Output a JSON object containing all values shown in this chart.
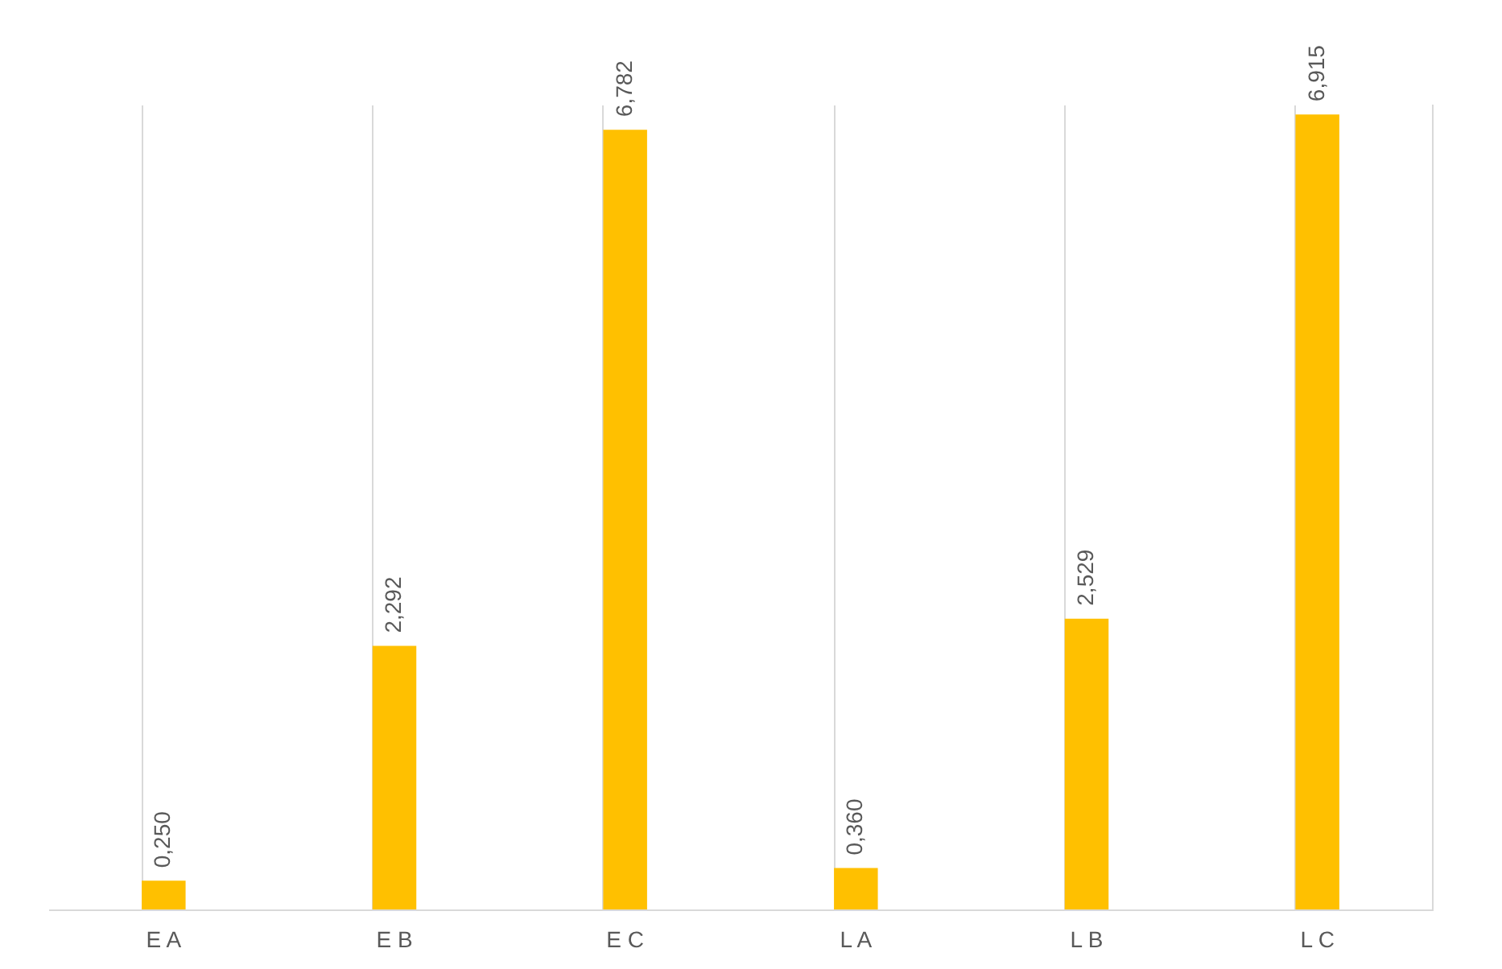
{
  "chart_data": {
    "type": "bar",
    "categories": [
      "E A",
      "E B",
      "E C",
      "L A",
      "L B",
      "L C"
    ],
    "values": [
      0.25,
      2.292,
      6.782,
      0.36,
      2.529,
      6.915
    ],
    "value_labels": [
      "0,250",
      "2,292",
      "6,782",
      "0,360",
      "2,529",
      "6,915"
    ],
    "color": "#ffc000",
    "grid": "x",
    "tick_labels": "x"
  }
}
